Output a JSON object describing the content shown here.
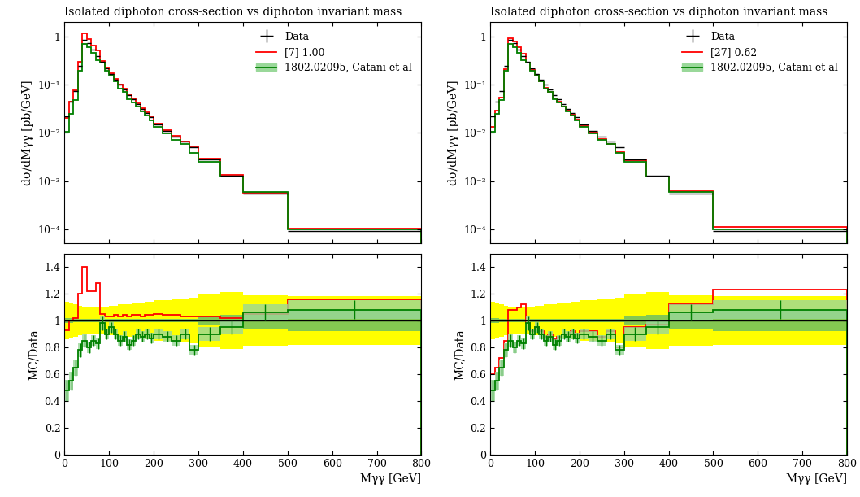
{
  "chart_data": [
    {
      "type": "step",
      "title": "Isolated diphoton cross-section vs diphoton invariant mass",
      "y_label": "dσ/dMγγ [pb/GeV]",
      "x_bins": [
        0,
        10,
        20,
        30,
        40,
        50,
        60,
        70,
        80,
        90,
        100,
        110,
        120,
        130,
        140,
        150,
        160,
        170,
        180,
        190,
        200,
        220,
        240,
        260,
        280,
        300,
        350,
        400,
        500,
        800
      ],
      "xlim": [
        0,
        800
      ],
      "xticks": [
        0,
        100,
        200,
        300,
        400,
        500,
        600,
        700,
        800
      ],
      "ylim": [
        5e-05,
        2
      ],
      "yticks": [
        {
          "value": 0.0001,
          "label": "10⁻⁴"
        },
        {
          "value": 0.001,
          "label": "10⁻³"
        },
        {
          "value": 0.01,
          "label": "10⁻²"
        },
        {
          "value": 0.1,
          "label": "10⁻¹"
        },
        1
      ],
      "log": "y",
      "legend": "upper right",
      "tick_labels": "y",
      "series": [
        {
          "name": "Data",
          "type": "points",
          "color": "#000000",
          "values": [
            0.022,
            0.045,
            0.075,
            0.25,
            0.85,
            0.75,
            0.55,
            0.4,
            0.3,
            0.22,
            0.17,
            0.13,
            0.1,
            0.08,
            0.062,
            0.05,
            0.04,
            0.032,
            0.026,
            0.021,
            0.015,
            0.011,
            0.0085,
            0.0065,
            0.005,
            0.0028,
            0.0013,
            0.00055,
            9e-05
          ]
        },
        {
          "name": "[7] 1.00",
          "type": "step",
          "color": "#ff0000",
          "values": [
            0.0205,
            0.045,
            0.0765,
            0.3,
            1.19,
            0.915,
            0.671,
            0.512,
            0.315,
            0.227,
            0.175,
            0.135,
            0.103,
            0.083,
            0.0639,
            0.052,
            0.0416,
            0.033,
            0.027,
            0.0218,
            0.0158,
            0.0114,
            0.0088,
            0.0067,
            0.00515,
            0.00288,
            0.00133,
            0.000578,
            0.000104
          ]
        },
        {
          "name": "1802.02095, Catani et al",
          "type": "step",
          "color": "#008000",
          "values": [
            0.0106,
            0.0248,
            0.0488,
            0.195,
            0.723,
            0.6,
            0.468,
            0.332,
            0.294,
            0.198,
            0.1615,
            0.117,
            0.085,
            0.0704,
            0.0508,
            0.0425,
            0.036,
            0.0282,
            0.0234,
            0.0183,
            0.0135,
            0.00968,
            0.00723,
            0.00585,
            0.0039,
            0.00252,
            0.00124,
            0.000583,
            9.72e-05
          ]
        }
      ]
    },
    {
      "type": "step",
      "x_label": "Mγγ [GeV]",
      "y_label": "MC/Data",
      "x_bins": [
        0,
        10,
        20,
        30,
        40,
        50,
        60,
        70,
        80,
        90,
        100,
        110,
        120,
        130,
        140,
        150,
        160,
        170,
        180,
        190,
        200,
        220,
        240,
        260,
        280,
        300,
        350,
        400,
        500,
        800
      ],
      "xlim": [
        0,
        800
      ],
      "xticks": [
        0,
        100,
        200,
        300,
        400,
        500,
        600,
        700,
        800
      ],
      "ylim": [
        0,
        1.5
      ],
      "yticks": [
        0,
        0.2,
        0.4,
        0.6,
        0.8,
        1,
        1.2,
        1.4
      ],
      "reference_line": 1,
      "data_total_error": [
        0.14,
        0.13,
        0.12,
        0.11,
        0.1,
        0.1,
        0.1,
        0.1,
        0.1,
        0.1,
        0.11,
        0.11,
        0.12,
        0.12,
        0.12,
        0.13,
        0.13,
        0.13,
        0.14,
        0.14,
        0.15,
        0.15,
        0.16,
        0.16,
        0.17,
        0.2,
        0.21,
        0.19,
        0.18
      ],
      "data_stat_error": [
        0.02,
        0.02,
        0.01,
        0.01,
        0.01,
        0.01,
        0.01,
        0.01,
        0.01,
        0.01,
        0.01,
        0.01,
        0.01,
        0.01,
        0.01,
        0.01,
        0.01,
        0.01,
        0.01,
        0.01,
        0.01,
        0.01,
        0.01,
        0.01,
        0.01,
        0.03,
        0.04,
        0.06,
        0.08
      ],
      "series": [
        {
          "type": "step",
          "color": "#ff0000",
          "values": [
            0.93,
            1.0,
            1.02,
            1.2,
            1.4,
            1.22,
            1.22,
            1.28,
            1.05,
            1.03,
            1.03,
            1.04,
            1.03,
            1.04,
            1.03,
            1.04,
            1.04,
            1.03,
            1.04,
            1.04,
            1.05,
            1.04,
            1.04,
            1.03,
            1.03,
            1.03,
            1.02,
            1.05,
            1.16
          ]
        },
        {
          "type": "step",
          "color": "#008000",
          "values": [
            0.48,
            0.55,
            0.65,
            0.78,
            0.85,
            0.8,
            0.85,
            0.83,
            0.98,
            0.9,
            0.95,
            0.9,
            0.85,
            0.88,
            0.82,
            0.85,
            0.9,
            0.88,
            0.9,
            0.87,
            0.9,
            0.88,
            0.85,
            0.9,
            0.78,
            0.9,
            0.95,
            1.06,
            1.08
          ],
          "error": [
            0.08,
            0.07,
            0.06,
            0.05,
            0.05,
            0.04,
            0.04,
            0.04,
            0.05,
            0.04,
            0.04,
            0.04,
            0.04,
            0.04,
            0.04,
            0.04,
            0.04,
            0.04,
            0.04,
            0.04,
            0.04,
            0.04,
            0.04,
            0.04,
            0.04,
            0.05,
            0.05,
            0.06,
            0.07
          ]
        }
      ]
    },
    {
      "type": "step",
      "title": "Isolated diphoton cross-section vs diphoton invariant mass",
      "y_label": "dσ/dMγγ [pb/GeV]",
      "x_bins": [
        0,
        10,
        20,
        30,
        40,
        50,
        60,
        70,
        80,
        90,
        100,
        110,
        120,
        130,
        140,
        150,
        160,
        170,
        180,
        190,
        200,
        220,
        240,
        260,
        280,
        300,
        350,
        400,
        500,
        800
      ],
      "xlim": [
        0,
        800
      ],
      "xticks": [
        0,
        100,
        200,
        300,
        400,
        500,
        600,
        700,
        800
      ],
      "ylim": [
        5e-05,
        2
      ],
      "yticks": [
        {
          "value": 0.0001,
          "label": "10⁻⁴"
        },
        {
          "value": 0.001,
          "label": "10⁻³"
        },
        {
          "value": 0.01,
          "label": "10⁻²"
        },
        {
          "value": 0.1,
          "label": "10⁻¹"
        },
        1
      ],
      "log": "y",
      "legend": "upper right",
      "tick_labels": "y",
      "series": [
        {
          "name": "Data",
          "type": "points",
          "color": "#000000",
          "values": [
            0.022,
            0.045,
            0.075,
            0.25,
            0.85,
            0.75,
            0.55,
            0.4,
            0.3,
            0.22,
            0.17,
            0.13,
            0.1,
            0.08,
            0.062,
            0.05,
            0.04,
            0.032,
            0.026,
            0.021,
            0.015,
            0.011,
            0.0085,
            0.0065,
            0.005,
            0.0028,
            0.0013,
            0.00055,
            9e-05
          ]
        },
        {
          "name": "[27] 0.62",
          "type": "step",
          "color": "#ff0000",
          "values": [
            0.0132,
            0.0293,
            0.054,
            0.2125,
            0.918,
            0.81,
            0.605,
            0.448,
            0.294,
            0.202,
            0.1615,
            0.1196,
            0.088,
            0.072,
            0.0533,
            0.044,
            0.036,
            0.0288,
            0.0239,
            0.0189,
            0.0138,
            0.0101,
            0.00748,
            0.00598,
            0.004,
            0.00266,
            0.00126,
            0.000616,
            0.000111
          ]
        },
        {
          "name": "1802.02095, Catani et al",
          "type": "step",
          "color": "#008000",
          "values": [
            0.0106,
            0.0248,
            0.0488,
            0.195,
            0.723,
            0.6,
            0.468,
            0.332,
            0.294,
            0.198,
            0.1615,
            0.117,
            0.085,
            0.0704,
            0.0508,
            0.0425,
            0.036,
            0.0282,
            0.0234,
            0.0183,
            0.0135,
            0.00968,
            0.00723,
            0.00585,
            0.0039,
            0.00252,
            0.00124,
            0.000583,
            9.72e-05
          ]
        }
      ]
    },
    {
      "type": "step",
      "x_label": "Mγγ [GeV]",
      "y_label": "MC/Data",
      "x_bins": [
        0,
        10,
        20,
        30,
        40,
        50,
        60,
        70,
        80,
        90,
        100,
        110,
        120,
        130,
        140,
        150,
        160,
        170,
        180,
        190,
        200,
        220,
        240,
        260,
        280,
        300,
        350,
        400,
        500,
        800
      ],
      "xlim": [
        0,
        800
      ],
      "xticks": [
        0,
        100,
        200,
        300,
        400,
        500,
        600,
        700,
        800
      ],
      "ylim": [
        0,
        1.5
      ],
      "yticks": [
        0,
        0.2,
        0.4,
        0.6,
        0.8,
        1,
        1.2,
        1.4
      ],
      "reference_line": 1,
      "data_total_error": [
        0.14,
        0.13,
        0.12,
        0.11,
        0.1,
        0.1,
        0.1,
        0.1,
        0.1,
        0.1,
        0.11,
        0.11,
        0.12,
        0.12,
        0.12,
        0.13,
        0.13,
        0.13,
        0.14,
        0.14,
        0.15,
        0.15,
        0.16,
        0.16,
        0.17,
        0.2,
        0.21,
        0.19,
        0.18
      ],
      "data_stat_error": [
        0.02,
        0.02,
        0.01,
        0.01,
        0.01,
        0.01,
        0.01,
        0.01,
        0.01,
        0.01,
        0.01,
        0.01,
        0.01,
        0.01,
        0.01,
        0.01,
        0.01,
        0.01,
        0.01,
        0.01,
        0.01,
        0.01,
        0.01,
        0.01,
        0.01,
        0.03,
        0.04,
        0.06,
        0.08
      ],
      "series": [
        {
          "type": "step",
          "color": "#ff0000",
          "values": [
            0.6,
            0.65,
            0.72,
            0.85,
            1.08,
            1.08,
            1.1,
            1.12,
            0.98,
            0.92,
            0.95,
            0.92,
            0.88,
            0.9,
            0.86,
            0.88,
            0.9,
            0.9,
            0.92,
            0.9,
            0.92,
            0.92,
            0.88,
            0.92,
            0.8,
            0.95,
            0.97,
            1.12,
            1.23
          ]
        },
        {
          "type": "step",
          "color": "#008000",
          "values": [
            0.48,
            0.55,
            0.65,
            0.78,
            0.85,
            0.8,
            0.85,
            0.83,
            0.98,
            0.9,
            0.95,
            0.9,
            0.85,
            0.88,
            0.82,
            0.85,
            0.9,
            0.88,
            0.9,
            0.87,
            0.9,
            0.88,
            0.85,
            0.9,
            0.78,
            0.9,
            0.95,
            1.06,
            1.08
          ],
          "error": [
            0.08,
            0.07,
            0.06,
            0.05,
            0.05,
            0.04,
            0.04,
            0.04,
            0.05,
            0.04,
            0.04,
            0.04,
            0.04,
            0.04,
            0.04,
            0.04,
            0.04,
            0.04,
            0.04,
            0.04,
            0.04,
            0.04,
            0.04,
            0.04,
            0.04,
            0.05,
            0.05,
            0.06,
            0.07
          ]
        }
      ]
    }
  ]
}
